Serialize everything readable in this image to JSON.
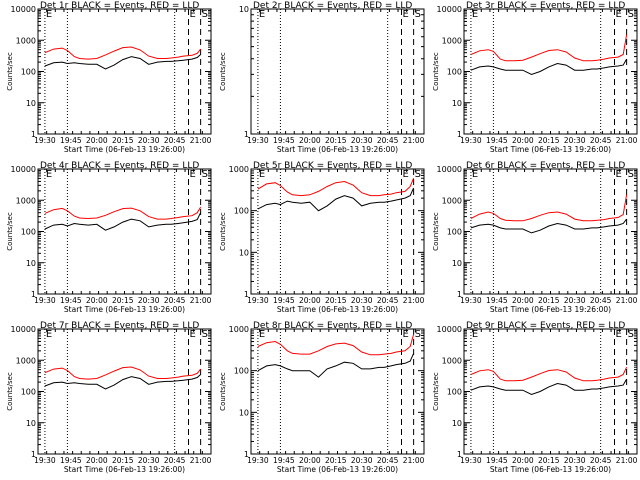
{
  "figure": {
    "panel_title_suffix": "BLACK = Events, RED = LLD",
    "xlabel": "Start Time (06-Feb-13 19:26:00)",
    "ylabel": "Counts/sec",
    "x_ticks": [
      "19:30",
      "19:45",
      "20:00",
      "20:15",
      "20:30",
      "20:45",
      "21:00"
    ],
    "markers": [
      {
        "label": "E",
        "x": "19:30",
        "style": "dotted"
      },
      {
        "label": "",
        "x": "19:43",
        "style": "dotted"
      },
      {
        "label": "",
        "x": "20:45",
        "style": "dotted"
      },
      {
        "label": "E",
        "x": "20:53",
        "style": "dashed"
      },
      {
        "label": "S",
        "x": "21:00",
        "style": "dashed"
      }
    ],
    "colors": {
      "events": "#000000",
      "lld": "#ff0000",
      "axis": "#000000"
    }
  },
  "chart_data": [
    {
      "type": "line",
      "title": "Det 1r",
      "ylim": [
        1,
        10000
      ],
      "yscale": "log",
      "y_ticks": [
        "1",
        "10",
        "100",
        "1000",
        "10000"
      ],
      "x": [
        "19:30",
        "19:35",
        "19:40",
        "19:43",
        "19:47",
        "19:50",
        "19:55",
        "20:00",
        "20:05",
        "20:10",
        "20:15",
        "20:20",
        "20:25",
        "20:30",
        "20:35",
        "20:40",
        "20:43",
        "20:47",
        "20:50",
        "20:55",
        "20:58",
        "21:00"
      ],
      "series": [
        {
          "name": "Events",
          "values": [
            150,
            190,
            200,
            180,
            190,
            180,
            170,
            170,
            120,
            160,
            240,
            300,
            260,
            170,
            200,
            210,
            210,
            220,
            230,
            250,
            280,
            350
          ]
        },
        {
          "name": "LLD",
          "values": [
            400,
            520,
            560,
            470,
            300,
            260,
            250,
            260,
            340,
            450,
            580,
            610,
            490,
            310,
            260,
            260,
            270,
            290,
            310,
            330,
            380,
            520
          ]
        }
      ]
    },
    {
      "type": "line",
      "title": "Det 2r",
      "ylim": [
        1,
        10
      ],
      "yscale": "log",
      "y_ticks": [
        "1",
        "10"
      ],
      "x": [],
      "series": []
    },
    {
      "type": "line",
      "title": "Det 3r",
      "ylim": [
        1,
        10000
      ],
      "yscale": "log",
      "y_ticks": [
        "1",
        "10",
        "100",
        "1000",
        "10000"
      ],
      "x": [
        "19:30",
        "19:35",
        "19:40",
        "19:43",
        "19:47",
        "19:50",
        "19:55",
        "20:00",
        "20:05",
        "20:10",
        "20:15",
        "20:20",
        "20:25",
        "20:30",
        "20:35",
        "20:40",
        "20:43",
        "20:47",
        "20:50",
        "20:55",
        "20:58",
        "21:00"
      ],
      "series": [
        {
          "name": "Events",
          "values": [
            110,
            140,
            150,
            140,
            120,
            110,
            110,
            110,
            80,
            100,
            140,
            180,
            160,
            110,
            110,
            120,
            120,
            130,
            140,
            150,
            160,
            250
          ]
        },
        {
          "name": "LLD",
          "values": [
            350,
            460,
            500,
            440,
            250,
            220,
            220,
            230,
            290,
            370,
            470,
            500,
            420,
            270,
            220,
            220,
            230,
            250,
            270,
            290,
            350,
            1500
          ]
        }
      ]
    },
    {
      "type": "line",
      "title": "Det 4r",
      "ylim": [
        1,
        10000
      ],
      "yscale": "log",
      "y_ticks": [
        "1",
        "10",
        "100",
        "1000",
        "10000"
      ],
      "x": [
        "19:30",
        "19:35",
        "19:40",
        "19:43",
        "19:47",
        "19:50",
        "19:55",
        "20:00",
        "20:05",
        "20:10",
        "20:15",
        "20:20",
        "20:25",
        "20:30",
        "20:35",
        "20:40",
        "20:43",
        "20:47",
        "20:50",
        "20:55",
        "20:58",
        "21:00"
      ],
      "series": [
        {
          "name": "Events",
          "values": [
            120,
            160,
            170,
            150,
            180,
            170,
            160,
            170,
            110,
            140,
            200,
            250,
            220,
            140,
            160,
            170,
            170,
            180,
            190,
            210,
            240,
            400
          ]
        },
        {
          "name": "LLD",
          "values": [
            380,
            500,
            550,
            460,
            310,
            270,
            260,
            270,
            330,
            430,
            540,
            560,
            460,
            300,
            250,
            250,
            260,
            280,
            300,
            320,
            400,
            600
          ]
        }
      ]
    },
    {
      "type": "line",
      "title": "Det 5r",
      "ylim": [
        1,
        1000
      ],
      "yscale": "log",
      "y_ticks": [
        "1",
        "10",
        "100",
        "1000"
      ],
      "x": [
        "19:30",
        "19:35",
        "19:40",
        "19:43",
        "19:47",
        "19:50",
        "19:55",
        "20:00",
        "20:05",
        "20:10",
        "20:15",
        "20:20",
        "20:25",
        "20:30",
        "20:35",
        "20:40",
        "20:43",
        "20:47",
        "20:50",
        "20:55",
        "20:58",
        "21:00"
      ],
      "series": [
        {
          "name": "Events",
          "values": [
            110,
            140,
            150,
            140,
            170,
            160,
            150,
            160,
            100,
            130,
            190,
            230,
            200,
            130,
            150,
            160,
            160,
            170,
            180,
            200,
            230,
            350
          ]
        },
        {
          "name": "LLD",
          "values": [
            330,
            440,
            470,
            400,
            280,
            240,
            230,
            240,
            290,
            380,
            470,
            500,
            410,
            270,
            230,
            230,
            240,
            250,
            270,
            290,
            380,
            600
          ]
        }
      ]
    },
    {
      "type": "line",
      "title": "Det 6r",
      "ylim": [
        1,
        10000
      ],
      "yscale": "log",
      "y_ticks": [
        "1",
        "10",
        "100",
        "1000",
        "10000"
      ],
      "x": [
        "19:30",
        "19:35",
        "19:40",
        "19:43",
        "19:47",
        "19:50",
        "19:55",
        "20:00",
        "20:05",
        "20:10",
        "20:15",
        "20:20",
        "20:25",
        "20:30",
        "20:35",
        "20:40",
        "20:43",
        "20:47",
        "20:50",
        "20:55",
        "20:58",
        "21:00"
      ],
      "series": [
        {
          "name": "Events",
          "values": [
            130,
            160,
            170,
            160,
            130,
            120,
            120,
            120,
            90,
            110,
            150,
            180,
            160,
            120,
            120,
            130,
            130,
            140,
            150,
            160,
            180,
            250
          ]
        },
        {
          "name": "LLD",
          "values": [
            260,
            360,
            420,
            380,
            260,
            230,
            220,
            220,
            260,
            330,
            400,
            420,
            360,
            250,
            220,
            220,
            230,
            240,
            260,
            280,
            350,
            1500
          ]
        }
      ]
    },
    {
      "type": "line",
      "title": "Det 7r",
      "ylim": [
        1,
        10000
      ],
      "yscale": "log",
      "y_ticks": [
        "1",
        "10",
        "100",
        "1000",
        "10000"
      ],
      "x": [
        "19:30",
        "19:35",
        "19:40",
        "19:43",
        "19:47",
        "19:50",
        "19:55",
        "20:00",
        "20:05",
        "20:10",
        "20:15",
        "20:20",
        "20:25",
        "20:30",
        "20:35",
        "20:40",
        "20:43",
        "20:47",
        "20:50",
        "20:55",
        "20:58",
        "21:00"
      ],
      "series": [
        {
          "name": "Events",
          "values": [
            150,
            190,
            200,
            180,
            190,
            180,
            170,
            170,
            120,
            160,
            240,
            300,
            260,
            170,
            200,
            210,
            210,
            220,
            230,
            250,
            280,
            350
          ]
        },
        {
          "name": "LLD",
          "values": [
            400,
            520,
            560,
            470,
            300,
            260,
            250,
            260,
            340,
            450,
            580,
            610,
            490,
            310,
            260,
            260,
            270,
            290,
            310,
            330,
            380,
            520
          ]
        }
      ]
    },
    {
      "type": "line",
      "title": "Det 8r",
      "ylim": [
        1,
        1000
      ],
      "yscale": "log",
      "y_ticks": [
        "1",
        "10",
        "100",
        "1000"
      ],
      "x": [
        "19:30",
        "19:35",
        "19:40",
        "19:43",
        "19:47",
        "19:50",
        "19:55",
        "20:00",
        "20:05",
        "20:10",
        "20:15",
        "20:20",
        "20:25",
        "20:30",
        "20:35",
        "20:40",
        "20:43",
        "20:47",
        "20:50",
        "20:55",
        "20:58",
        "21:00"
      ],
      "series": [
        {
          "name": "Events",
          "values": [
            100,
            130,
            140,
            130,
            110,
            100,
            100,
            100,
            70,
            110,
            130,
            160,
            150,
            110,
            110,
            120,
            120,
            130,
            140,
            150,
            170,
            260
          ]
        },
        {
          "name": "LLD",
          "values": [
            380,
            470,
            500,
            430,
            300,
            260,
            250,
            250,
            300,
            380,
            440,
            460,
            400,
            280,
            240,
            240,
            250,
            260,
            280,
            300,
            380,
            750
          ]
        }
      ]
    },
    {
      "type": "line",
      "title": "Det 9r",
      "ylim": [
        1,
        10000
      ],
      "yscale": "log",
      "y_ticks": [
        "1",
        "10",
        "100",
        "1000",
        "10000"
      ],
      "x": [
        "19:30",
        "19:35",
        "19:40",
        "19:43",
        "19:47",
        "19:50",
        "19:55",
        "20:00",
        "20:05",
        "20:10",
        "20:15",
        "20:20",
        "20:25",
        "20:30",
        "20:35",
        "20:40",
        "20:43",
        "20:47",
        "20:50",
        "20:55",
        "20:58",
        "21:00"
      ],
      "series": [
        {
          "name": "Events",
          "values": [
            110,
            140,
            150,
            140,
            120,
            110,
            110,
            110,
            80,
            100,
            140,
            180,
            160,
            110,
            110,
            120,
            120,
            130,
            140,
            150,
            160,
            250
          ]
        },
        {
          "name": "LLD",
          "values": [
            350,
            460,
            500,
            440,
            250,
            220,
            220,
            230,
            290,
            370,
            470,
            500,
            420,
            270,
            220,
            220,
            230,
            250,
            270,
            290,
            350,
            600
          ]
        }
      ]
    }
  ]
}
